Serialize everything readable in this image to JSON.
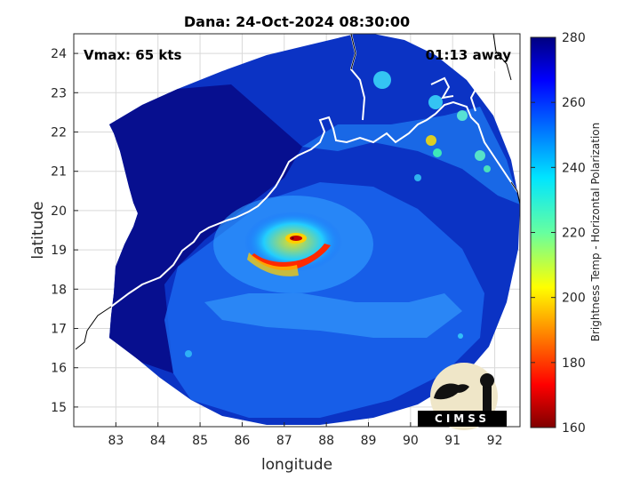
{
  "chart_data": {
    "type": "heatmap",
    "title": "Dana: 24-Oct-2024 08:30:00",
    "xlabel": "longitude",
    "ylabel": "latitude",
    "xlim": [
      82,
      92.6
    ],
    "ylim": [
      14.5,
      24.5
    ],
    "xticks": [
      83,
      84,
      85,
      86,
      87,
      88,
      89,
      90,
      91,
      92
    ],
    "yticks": [
      15,
      16,
      17,
      18,
      19,
      20,
      21,
      22,
      23,
      24
    ],
    "grid": true,
    "annotations": {
      "vmax": "Vmax: 65 kts",
      "time_away": "01:13 away"
    },
    "colorbar": {
      "label": "Brightness Temp - Horizontal Polarization",
      "range": [
        160,
        280
      ],
      "ticks": [
        160,
        180,
        200,
        220,
        240,
        260,
        280
      ],
      "colormap": "jet"
    },
    "storm_center": {
      "lon": 87.2,
      "lat": 19.3
    },
    "logo_text": "CIMSS"
  }
}
